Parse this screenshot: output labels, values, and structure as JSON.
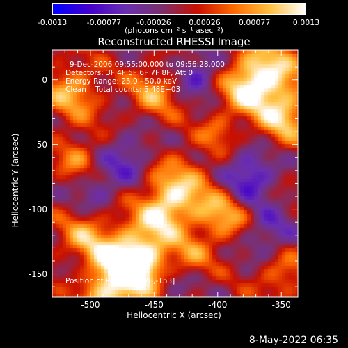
{
  "colorbar": {
    "tick_labels": [
      "-0.0013",
      "-0.00077",
      "-0.00026",
      "0.00026",
      "0.00077",
      "0.0013"
    ],
    "tick_values": [
      -0.0013,
      -0.00077,
      -0.00026,
      0.00026,
      0.00077,
      0.0013
    ],
    "units_label": "(photons cm⁻² s⁻¹ asec⁻²)",
    "colors": [
      "#0000ff",
      "#4400cc",
      "#6a2fb0",
      "#7a3070",
      "#c81000",
      "#ff6a00",
      "#ffc040",
      "#ffffff"
    ]
  },
  "chart_data": {
    "type": "heatmap",
    "title": "Reconstructed RHESSI Image",
    "xlabel": "Heliocentric X (arcsec)",
    "ylabel": "Heliocentric Y (arcsec)",
    "xlim": [
      -530,
      -337
    ],
    "ylim": [
      -168,
      23
    ],
    "x_ticks": [
      -500,
      -450,
      -400,
      -350
    ],
    "y_ticks": [
      0,
      -50,
      -100,
      -150
    ],
    "x_tick_labels": [
      "-500",
      "-450",
      "-400",
      "-350"
    ],
    "y_tick_labels": [
      "0",
      "-50",
      "-100",
      "-150"
    ],
    "clim": [
      -0.0013,
      0.0013
    ],
    "annotations": [
      "9-Dec-2006 09:55:00.000 to 09:56:28.000",
      "Detectors: 3F 4F 5F 6F 7F 8F, Att 0",
      "Energy Range: 25.0 - 50.0 keV",
      "Clean    Total counts: 5.48E+03",
      "Position of Peak = [-478,-153]"
    ],
    "peak": {
      "x": -478,
      "y": -153
    },
    "blobs": [
      {
        "x": -478,
        "y": -153,
        "r": 22,
        "v": 0.0013
      },
      {
        "x": -462,
        "y": -140,
        "r": 16,
        "v": 0.001
      },
      {
        "x": -360,
        "y": 5,
        "r": 18,
        "v": 0.0011
      },
      {
        "x": -348,
        "y": -30,
        "r": 14,
        "v": 0.0009
      },
      {
        "x": -378,
        "y": -8,
        "r": 14,
        "v": 0.0008
      },
      {
        "x": -515,
        "y": -10,
        "r": 16,
        "v": 0.0008
      },
      {
        "x": -510,
        "y": -60,
        "r": 12,
        "v": 0.0006
      },
      {
        "x": -505,
        "y": -120,
        "r": 14,
        "v": 0.0006
      },
      {
        "x": -450,
        "y": -10,
        "r": 14,
        "v": 0.0007
      },
      {
        "x": -430,
        "y": -85,
        "r": 18,
        "v": 0.0009
      },
      {
        "x": -445,
        "y": -105,
        "r": 14,
        "v": 0.0008
      },
      {
        "x": -395,
        "y": -105,
        "r": 14,
        "v": 0.0008
      },
      {
        "x": -420,
        "y": -135,
        "r": 12,
        "v": 0.0005
      },
      {
        "x": -350,
        "y": -150,
        "r": 14,
        "v": 0.0006
      },
      {
        "x": -400,
        "y": -40,
        "r": 10,
        "v": 0.0005
      },
      {
        "x": -415,
        "y": 5,
        "r": 12,
        "v": -0.0007
      },
      {
        "x": -470,
        "y": -60,
        "r": 14,
        "v": -0.0006
      },
      {
        "x": -375,
        "y": -75,
        "r": 14,
        "v": -0.0009
      },
      {
        "x": -495,
        "y": -85,
        "r": 12,
        "v": -0.0005
      },
      {
        "x": -360,
        "y": -120,
        "r": 14,
        "v": -0.0006
      },
      {
        "x": -440,
        "y": -160,
        "r": 12,
        "v": -0.0005
      },
      {
        "x": -510,
        "y": -150,
        "r": 10,
        "v": -0.0004
      }
    ]
  },
  "footer": {
    "date": "8-May-2022 06:35"
  }
}
